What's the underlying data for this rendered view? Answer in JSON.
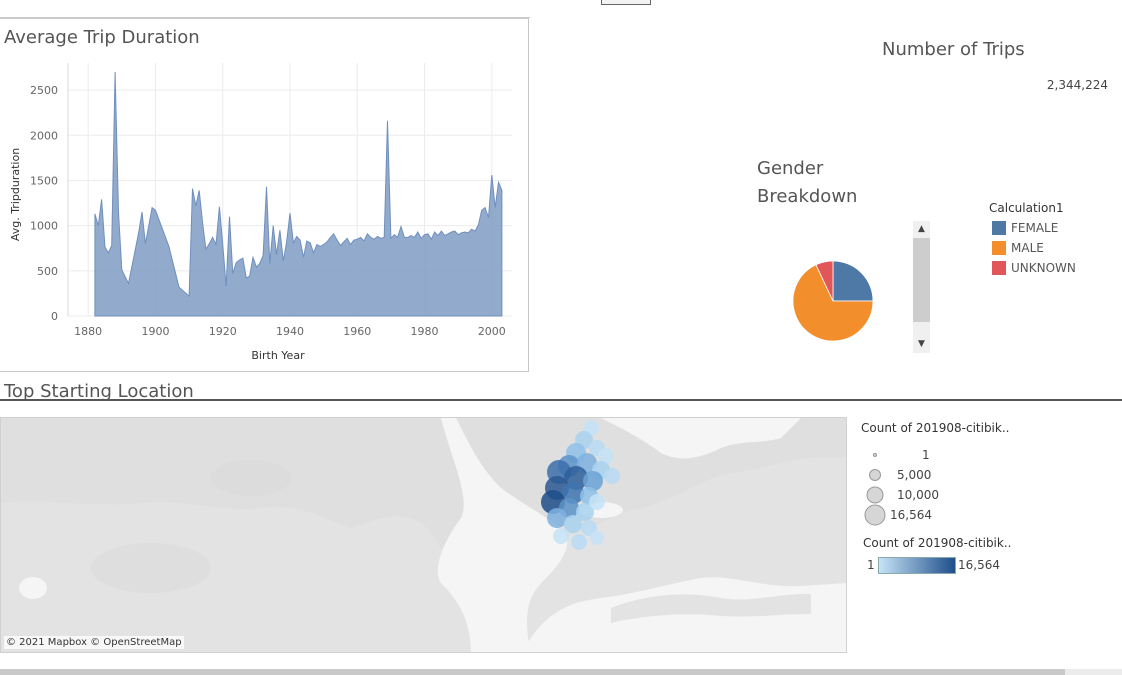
{
  "trip_duration": {
    "title": "Average Trip Duration"
  },
  "number_of_trips": {
    "title": "Number of Trips",
    "value": "2,344,224"
  },
  "gender": {
    "title": "Gender Breakdown",
    "legend_title": "Calculation1",
    "scroll_up_icon": "chevron-up-icon",
    "scroll_down_icon": "chevron-down-icon"
  },
  "map": {
    "title": "Top Starting Location",
    "credit": "© 2021 Mapbox © OpenStreetMap",
    "size_legend_title": "Count of 201908-citibik..",
    "size_legend_items": [
      "1",
      "5,000",
      "10,000",
      "16,564"
    ],
    "color_legend_title": "Count of 201908-citibik..",
    "color_legend_min": "1",
    "color_legend_max": "16,564",
    "color_scale": [
      "#c6e3f7",
      "#1f4e8a"
    ]
  },
  "chart_data": [
    {
      "type": "area",
      "title": "Average Trip Duration",
      "xlabel": "Birth Year",
      "ylabel": "Avg. Tripduration",
      "xlim": [
        1874,
        2006
      ],
      "ylim": [
        0,
        2800
      ],
      "xticks": [
        1880,
        1900,
        1920,
        1940,
        1960,
        1980,
        2000
      ],
      "yticks": [
        0,
        500,
        1000,
        1500,
        2000,
        2500
      ],
      "color": "#7f9cc4",
      "grid": true,
      "x": [
        1882,
        1883,
        1884,
        1885,
        1886,
        1887,
        1888,
        1889,
        1890,
        1892,
        1895,
        1896,
        1897,
        1899,
        1900,
        1904,
        1907,
        1910,
        1911,
        1912,
        1913,
        1914,
        1915,
        1916,
        1917,
        1918,
        1919,
        1920,
        1921,
        1922,
        1923,
        1924,
        1925,
        1926,
        1927,
        1928,
        1929,
        1930,
        1931,
        1932,
        1933,
        1934,
        1935,
        1936,
        1937,
        1938,
        1939,
        1940,
        1941,
        1942,
        1943,
        1944,
        1945,
        1946,
        1947,
        1948,
        1949,
        1950,
        1951,
        1952,
        1953,
        1954,
        1955,
        1956,
        1957,
        1958,
        1959,
        1960,
        1961,
        1962,
        1963,
        1964,
        1965,
        1966,
        1967,
        1968,
        1969,
        1970,
        1971,
        1972,
        1973,
        1974,
        1975,
        1976,
        1977,
        1978,
        1979,
        1980,
        1981,
        1982,
        1983,
        1984,
        1985,
        1986,
        1987,
        1988,
        1989,
        1990,
        1991,
        1992,
        1993,
        1994,
        1995,
        1996,
        1997,
        1998,
        1999,
        2000,
        2001,
        2002,
        2003
      ],
      "y": [
        1130,
        1000,
        1290,
        760,
        700,
        780,
        2700,
        1150,
        510,
        360,
        920,
        1150,
        800,
        1200,
        1170,
        770,
        320,
        220,
        1410,
        1220,
        1390,
        1040,
        740,
        800,
        870,
        790,
        1210,
        800,
        330,
        1100,
        470,
        590,
        620,
        640,
        420,
        440,
        650,
        540,
        580,
        670,
        1430,
        580,
        1000,
        680,
        950,
        610,
        820,
        1140,
        810,
        880,
        840,
        650,
        830,
        810,
        700,
        790,
        770,
        790,
        820,
        870,
        910,
        840,
        780,
        820,
        860,
        790,
        840,
        850,
        870,
        830,
        910,
        870,
        850,
        880,
        860,
        870,
        2160,
        860,
        900,
        870,
        990,
        870,
        870,
        890,
        870,
        930,
        860,
        900,
        910,
        850,
        930,
        890,
        940,
        890,
        910,
        930,
        940,
        900,
        920,
        930,
        920,
        960,
        940,
        1010,
        1170,
        1200,
        1090,
        1560,
        1200,
        1480,
        1390
      ]
    },
    {
      "type": "pie",
      "title": "Gender Breakdown",
      "categories": [
        "FEMALE",
        "MALE",
        "UNKNOWN"
      ],
      "values": [
        25.0,
        68.0,
        7.0
      ],
      "colors": [
        "#4e79a7",
        "#f28e2b",
        "#e15759"
      ]
    }
  ]
}
